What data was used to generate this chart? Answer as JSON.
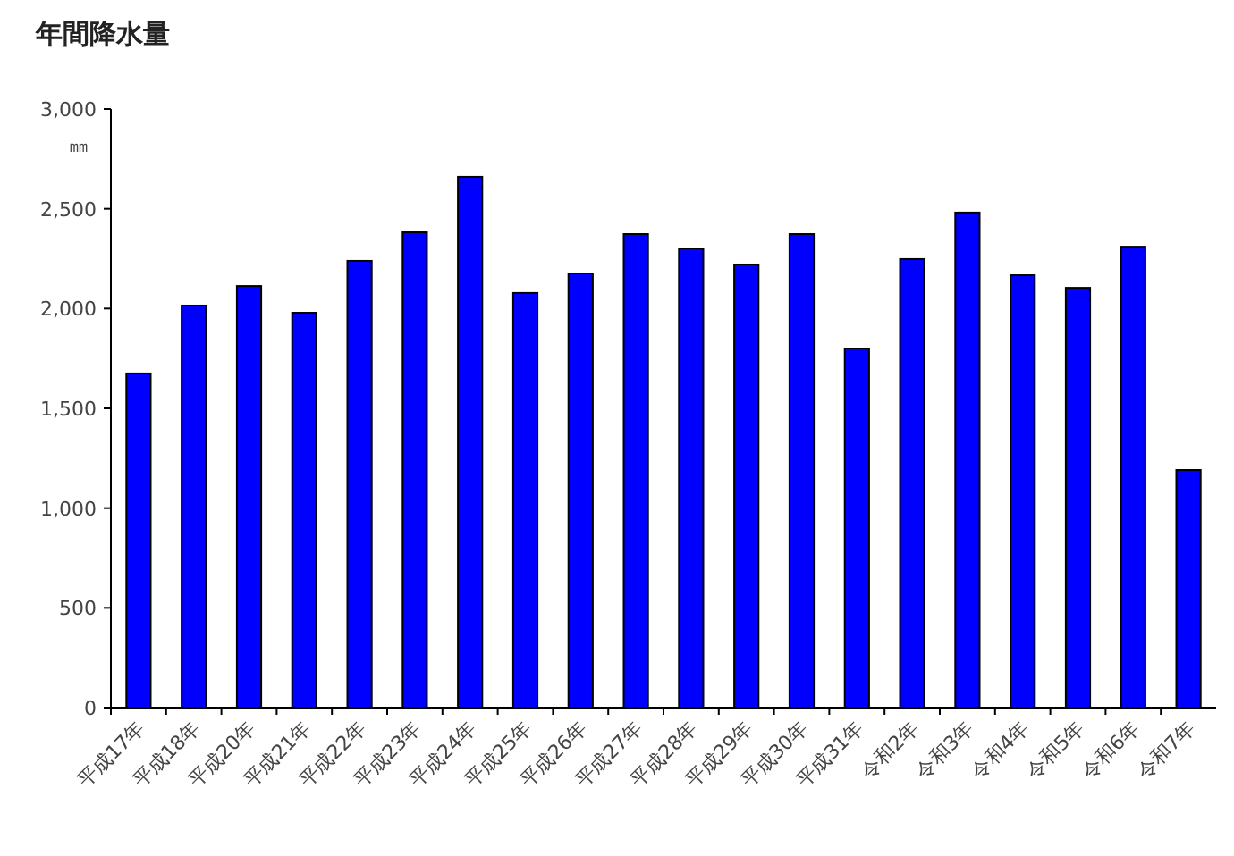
{
  "chart_data": {
    "type": "bar",
    "title": "年間降水量",
    "ylabel": "㎜",
    "categories": [
      "平成17年",
      "平成18年",
      "平成20年",
      "平成21年",
      "平成22年",
      "平成23年",
      "平成24年",
      "平成25年",
      "平成26年",
      "平成27年",
      "平成28年",
      "平成29年",
      "平成30年",
      "平成31年",
      "令和2年",
      "令和3年",
      "令和4年",
      "令和5年",
      "令和6年",
      "令和7年"
    ],
    "values": [
      1675,
      2015,
      2113,
      1979,
      2239,
      2382,
      2660,
      2078,
      2176,
      2373,
      2301,
      2221,
      2373,
      1800,
      2248,
      2481,
      2167,
      2104,
      2310,
      1191
    ],
    "color": "#0000ff",
    "ylim": [
      0,
      3000
    ],
    "yticks": [
      {
        "value": 0,
        "label": "0"
      },
      {
        "value": 500,
        "label": "500"
      },
      {
        "value": 1000,
        "label": "1,000"
      },
      {
        "value": 1500,
        "label": "1,500"
      },
      {
        "value": 2000,
        "label": "2,000"
      },
      {
        "value": 2500,
        "label": "2,500"
      },
      {
        "value": 3000,
        "label": "3,000"
      }
    ]
  }
}
